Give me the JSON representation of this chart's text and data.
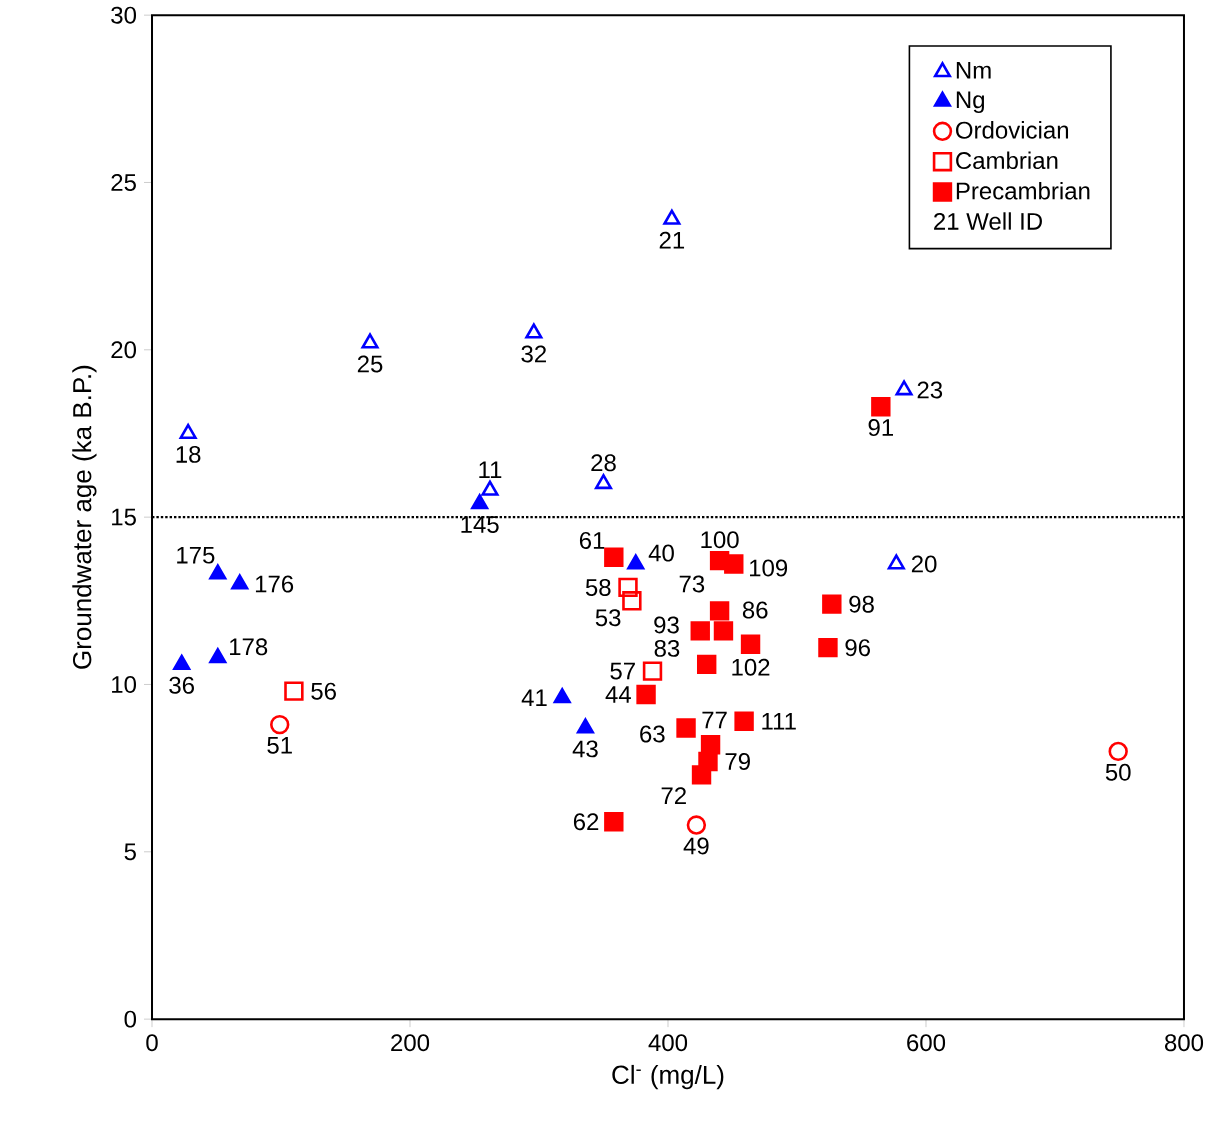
{
  "chart_data": {
    "type": "scatter",
    "xlabel": "Cl$^{-}$ (mg/L)",
    "ylabel": "Groundwater age (ka B.P.)",
    "xlim": [
      0,
      800
    ],
    "ylim": [
      0,
      30
    ],
    "xticks": [
      0,
      200,
      400,
      600,
      800
    ],
    "yticks": [
      0,
      5,
      10,
      15,
      20,
      25,
      30
    ],
    "grid": false,
    "legend": "top right",
    "series": [
      {
        "name": "Nm",
        "color": "#0000ff",
        "marker": "triangle",
        "x": [
          28,
          169,
          296,
          262,
          350,
          403,
          583,
          577
        ],
        "values": [
          17.5,
          20.2,
          20.5,
          15.8,
          16.0,
          23.9,
          18.8,
          13.6
        ]
      },
      {
        "name": "Ng",
        "color": "#0000ff",
        "marker": "triangle",
        "x": [
          254,
          51,
          68,
          23,
          51,
          375,
          318,
          336
        ],
        "values": [
          15.4,
          13.3,
          13.0,
          10.6,
          10.8,
          13.6,
          9.6,
          8.7
        ]
      },
      {
        "name": "Ordovician",
        "color": "#ff0000",
        "marker": "circle",
        "x": [
          99,
          422,
          749
        ],
        "values": [
          8.8,
          5.8,
          8.0
        ]
      },
      {
        "name": "Cambrian",
        "color": "#ff0000",
        "marker": "square",
        "x": [
          110,
          369,
          372,
          388
        ],
        "values": [
          9.8,
          12.9,
          12.5,
          10.4
        ]
      },
      {
        "name": "Precambrian",
        "color": "#ff0000",
        "marker": "square",
        "x": [
          358,
          440,
          451,
          440,
          425,
          443,
          430,
          527,
          524,
          383,
          433,
          459,
          431,
          426,
          414,
          464,
          358,
          565
        ],
        "values": [
          13.8,
          13.7,
          13.6,
          12.2,
          11.6,
          11.6,
          10.6,
          12.4,
          11.1,
          9.7,
          8.2,
          8.9,
          7.7,
          7.3,
          8.7,
          11.2,
          5.9,
          18.3
        ]
      }
    ],
    "ref_lines": [
      {
        "axis": "y",
        "value": 15,
        "line_style": "dotted",
        "color": "#000000"
      }
    ],
    "annotations": [
      {
        "text": "18",
        "x": 28,
        "y": 17.5
      },
      {
        "text": "25",
        "x": 169,
        "y": 20.2
      },
      {
        "text": "32",
        "x": 296,
        "y": 20.5
      },
      {
        "text": "11",
        "x": 262,
        "y": 15.8
      },
      {
        "text": "28",
        "x": 350,
        "y": 16.0
      },
      {
        "text": "21",
        "x": 403,
        "y": 23.9
      },
      {
        "text": "23",
        "x": 583,
        "y": 18.8
      },
      {
        "text": "20",
        "x": 577,
        "y": 13.6
      },
      {
        "text": "145",
        "x": 254,
        "y": 15.4
      },
      {
        "text": "175",
        "x": 51,
        "y": 13.3
      },
      {
        "text": "176",
        "x": 68,
        "y": 13.0
      },
      {
        "text": "36",
        "x": 23,
        "y": 10.6
      },
      {
        "text": "178",
        "x": 51,
        "y": 10.8
      },
      {
        "text": "40",
        "x": 375,
        "y": 13.6
      },
      {
        "text": "41",
        "x": 318,
        "y": 9.6
      },
      {
        "text": "43",
        "x": 336,
        "y": 8.7
      },
      {
        "text": "51",
        "x": 99,
        "y": 8.8
      },
      {
        "text": "49",
        "x": 422,
        "y": 5.8
      },
      {
        "text": "50",
        "x": 749,
        "y": 8.0
      },
      {
        "text": "56",
        "x": 110,
        "y": 9.8
      },
      {
        "text": "58",
        "x": 369,
        "y": 12.9
      },
      {
        "text": "53",
        "x": 372,
        "y": 12.5
      },
      {
        "text": "57",
        "x": 388,
        "y": 10.4
      },
      {
        "text": "61",
        "x": 358,
        "y": 13.8
      },
      {
        "text": "100",
        "x": 440,
        "y": 13.7
      },
      {
        "text": "109",
        "x": 451,
        "y": 13.6
      },
      {
        "text": "73",
        "x": 440,
        "y": 12.2
      },
      {
        "text": "93",
        "x": 425,
        "y": 11.6
      },
      {
        "text": "86",
        "x": 443,
        "y": 11.6
      },
      {
        "text": "83",
        "x": 430,
        "y": 10.6
      },
      {
        "text": "98",
        "x": 527,
        "y": 12.4
      },
      {
        "text": "96",
        "x": 524,
        "y": 11.1
      },
      {
        "text": "44",
        "x": 383,
        "y": 9.7
      },
      {
        "text": "77",
        "x": 433,
        "y": 8.2
      },
      {
        "text": "111",
        "x": 459,
        "y": 8.9
      },
      {
        "text": "79",
        "x": 431,
        "y": 7.7
      },
      {
        "text": "72",
        "x": 426,
        "y": 7.3
      },
      {
        "text": "63",
        "x": 414,
        "y": 8.7
      },
      {
        "text": "102",
        "x": 464,
        "y": 11.2
      },
      {
        "text": "62",
        "x": 358,
        "y": 5.9
      },
      {
        "text": "91",
        "x": 565,
        "y": 18.3
      },
      "21 Well ID"
    ]
  }
}
